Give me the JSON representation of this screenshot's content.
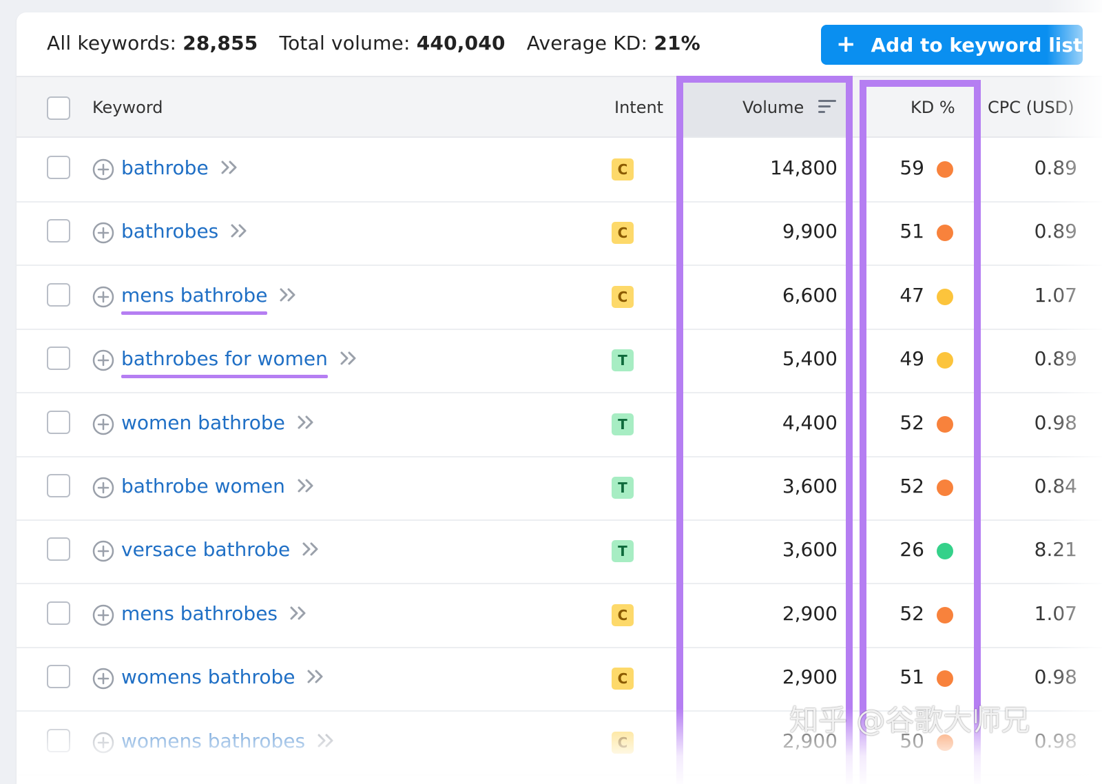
{
  "summary": {
    "all_keywords_label": "All keywords:",
    "all_keywords_value": "28,855",
    "total_volume_label": "Total volume:",
    "total_volume_value": "440,040",
    "avg_kd_label": "Average KD:",
    "avg_kd_value": "21%",
    "add_button_label": "Add to keyword list"
  },
  "columns": {
    "keyword": "Keyword",
    "intent": "Intent",
    "volume": "Volume",
    "kd": "KD %",
    "cpc": "CPC (USD)"
  },
  "colors": {
    "accent": "#0a8ff0",
    "highlight": "#b57ef2",
    "link": "#1f6fc5",
    "kd_orange": "#f8823c",
    "kd_yellow": "#fcc43c",
    "kd_green": "#35d18a"
  },
  "rows": [
    {
      "keyword": "bathrobe",
      "intent": "C",
      "volume": "14,800",
      "kd": "59",
      "kd_level": "orange",
      "cpc": "0.89",
      "underlined": false
    },
    {
      "keyword": "bathrobes",
      "intent": "C",
      "volume": "9,900",
      "kd": "51",
      "kd_level": "orange",
      "cpc": "0.89",
      "underlined": false
    },
    {
      "keyword": "mens bathrobe",
      "intent": "C",
      "volume": "6,600",
      "kd": "47",
      "kd_level": "yellow",
      "cpc": "1.07",
      "underlined": true
    },
    {
      "keyword": "bathrobes for women",
      "intent": "T",
      "volume": "5,400",
      "kd": "49",
      "kd_level": "yellow",
      "cpc": "0.89",
      "underlined": true
    },
    {
      "keyword": "women bathrobe",
      "intent": "T",
      "volume": "4,400",
      "kd": "52",
      "kd_level": "orange",
      "cpc": "0.98",
      "underlined": false
    },
    {
      "keyword": "bathrobe women",
      "intent": "T",
      "volume": "3,600",
      "kd": "52",
      "kd_level": "orange",
      "cpc": "0.84",
      "underlined": false
    },
    {
      "keyword": "versace bathrobe",
      "intent": "T",
      "volume": "3,600",
      "kd": "26",
      "kd_level": "green",
      "cpc": "8.21",
      "underlined": false
    },
    {
      "keyword": "mens bathrobes",
      "intent": "C",
      "volume": "2,900",
      "kd": "52",
      "kd_level": "orange",
      "cpc": "1.07",
      "underlined": false
    },
    {
      "keyword": "womens bathrobe",
      "intent": "C",
      "volume": "2,900",
      "kd": "51",
      "kd_level": "orange",
      "cpc": "0.98",
      "underlined": false
    },
    {
      "keyword": "womens bathrobes",
      "intent": "C",
      "volume": "2,900",
      "kd": "50",
      "kd_level": "orange",
      "cpc": "0.98",
      "underlined": false
    }
  ],
  "watermark": "知乎 @谷歌大师兄"
}
